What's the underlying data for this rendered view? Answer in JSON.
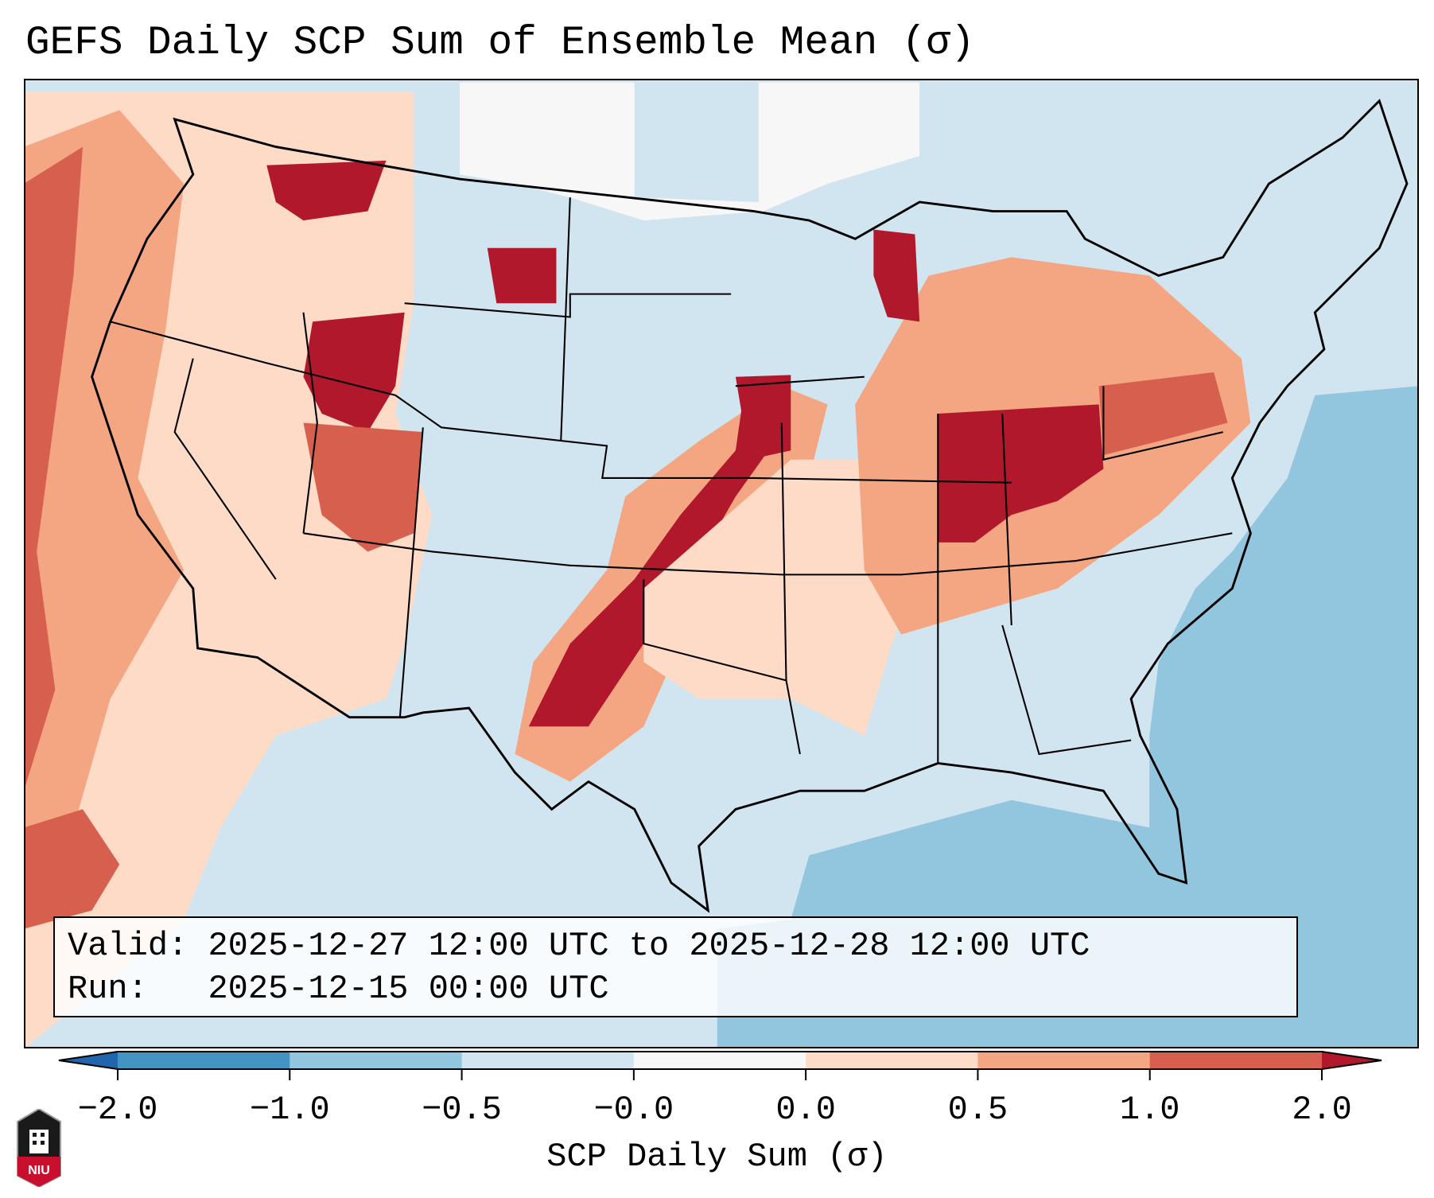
{
  "chart_data": {
    "type": "heatmap",
    "title": "GEFS Daily SCP Sum of Ensemble Mean (σ)",
    "colorbar": {
      "label": "SCP Daily Sum (σ)",
      "tick_labels": [
        "−2.0",
        "−1.0",
        "−0.5",
        "−0.0",
        "0.0",
        "0.5",
        "1.0",
        "2.0"
      ],
      "bins": [
        {
          "range": "< -2.0",
          "color": "#2166ac"
        },
        {
          "range": "-2.0 to -1.0",
          "color": "#4393c3"
        },
        {
          "range": "-1.0 to -0.5",
          "color": "#92c5de"
        },
        {
          "range": "-0.5 to -0.0",
          "color": "#d1e5f0"
        },
        {
          "range": "-0.0 to 0.0",
          "color": "#f7f7f7"
        },
        {
          "range": "0.0 to 0.5",
          "color": "#fddbc7"
        },
        {
          "range": "0.5 to 1.0",
          "color": "#f4a582"
        },
        {
          "range": "1.0 to 2.0",
          "color": "#d6604d"
        },
        {
          "range": "> 2.0",
          "color": "#b2182b"
        }
      ],
      "extend": "both"
    },
    "region": "Contiguous United States",
    "highlights": [
      {
        "area": "Ohio Valley / Indiana / Ohio",
        "level": "> 2.0"
      },
      {
        "area": "Central Plains to West Texas streak",
        "level": "> 2.0"
      },
      {
        "area": "Idaho / Montana",
        "level": "> 2.0"
      },
      {
        "area": "Western Atlantic",
        "level": "-1.0 to -0.5"
      }
    ]
  },
  "info": {
    "valid_label": "Valid:",
    "valid_value": "2025-12-27 12:00 UTC to 2025-12-28 12:00 UTC",
    "run_label": "Run:",
    "run_value": "2025-12-15 00:00 UTC"
  },
  "logo": {
    "text": "NIU"
  }
}
